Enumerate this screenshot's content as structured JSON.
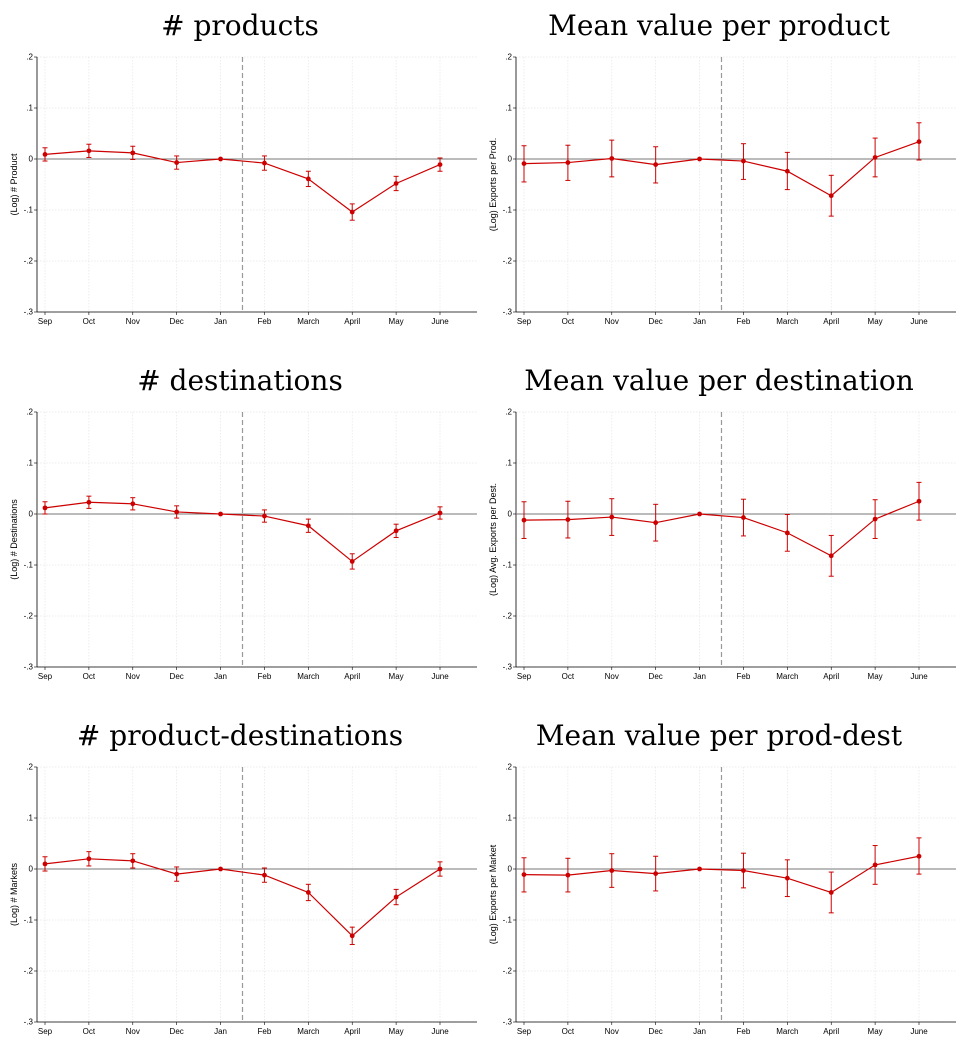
{
  "chart_data": [
    {
      "type": "line",
      "title": "# products",
      "ylabel": "(Log) # Product",
      "categories": [
        "Sep",
        "Oct",
        "Nov",
        "Dec",
        "Jan",
        "Feb",
        "March",
        "April",
        "May",
        "June"
      ],
      "y_ticks": [
        ".2",
        ".1",
        "0",
        "-.1",
        "-.2",
        "-.3"
      ],
      "ylim": [
        -0.3,
        0.2
      ],
      "grid": true,
      "reference_line_after": "Jan",
      "values": [
        0.009,
        0.016,
        0.012,
        -0.007,
        0.0,
        -0.008,
        -0.039,
        -0.104,
        -0.048,
        -0.011
      ],
      "ci_low": [
        -0.004,
        0.003,
        -0.001,
        -0.02,
        0.0,
        -0.022,
        -0.054,
        -0.12,
        -0.062,
        -0.024
      ],
      "ci_high": [
        0.022,
        0.029,
        0.025,
        0.006,
        0.0,
        0.006,
        -0.024,
        -0.088,
        -0.034,
        0.002
      ],
      "color": "#cc0000"
    },
    {
      "type": "line",
      "title": "Mean value per product",
      "ylabel": "(Log) Exports per Prod.",
      "categories": [
        "Sep",
        "Oct",
        "Nov",
        "Dec",
        "Jan",
        "Feb",
        "March",
        "April",
        "May",
        "June"
      ],
      "y_ticks": [
        ".2",
        ".1",
        "0",
        "-.1",
        "-.2",
        "-.3"
      ],
      "ylim": [
        -0.3,
        0.2
      ],
      "grid": true,
      "reference_line_after": "Jan",
      "values": [
        -0.009,
        -0.007,
        0.001,
        -0.011,
        0.0,
        -0.004,
        -0.024,
        -0.072,
        0.003,
        0.034
      ],
      "ci_low": [
        -0.045,
        -0.042,
        -0.035,
        -0.047,
        0.0,
        -0.04,
        -0.06,
        -0.112,
        -0.035,
        -0.002
      ],
      "ci_high": [
        0.026,
        0.027,
        0.037,
        0.024,
        0.0,
        0.03,
        0.013,
        -0.032,
        0.041,
        0.071
      ],
      "color": "#cc0000"
    },
    {
      "type": "line",
      "title": "# destinations",
      "ylabel": "(Log) # Destinations",
      "categories": [
        "Sep",
        "Oct",
        "Nov",
        "Dec",
        "Jan",
        "Feb",
        "March",
        "April",
        "May",
        "June"
      ],
      "y_ticks": [
        ".2",
        ".1",
        "0",
        "-.1",
        "-.2",
        "-.3"
      ],
      "ylim": [
        -0.3,
        0.2
      ],
      "grid": true,
      "reference_line_after": "Jan",
      "values": [
        0.012,
        0.023,
        0.02,
        0.004,
        0.0,
        -0.004,
        -0.023,
        -0.093,
        -0.033,
        0.002
      ],
      "ci_low": [
        0.0,
        0.011,
        0.008,
        -0.008,
        0.0,
        -0.016,
        -0.036,
        -0.108,
        -0.046,
        -0.01
      ],
      "ci_high": [
        0.024,
        0.035,
        0.032,
        0.016,
        0.0,
        0.008,
        -0.01,
        -0.078,
        -0.02,
        0.014
      ],
      "color": "#cc0000"
    },
    {
      "type": "line",
      "title": "Mean value per destination",
      "ylabel": "(Log) Avg. Exports per Dest.",
      "categories": [
        "Sep",
        "Oct",
        "Nov",
        "Dec",
        "Jan",
        "Feb",
        "March",
        "April",
        "May",
        "June"
      ],
      "y_ticks": [
        ".2",
        ".1",
        "0",
        "-.1",
        "-.2",
        "-.3"
      ],
      "ylim": [
        -0.3,
        0.2
      ],
      "grid": true,
      "reference_line_after": "Jan",
      "values": [
        -0.012,
        -0.011,
        -0.006,
        -0.017,
        0.0,
        -0.007,
        -0.037,
        -0.082,
        -0.01,
        0.025
      ],
      "ci_low": [
        -0.048,
        -0.047,
        -0.042,
        -0.053,
        0.0,
        -0.043,
        -0.073,
        -0.122,
        -0.048,
        -0.012
      ],
      "ci_high": [
        0.024,
        0.025,
        0.03,
        0.019,
        0.0,
        0.029,
        -0.001,
        -0.042,
        0.028,
        0.062
      ],
      "color": "#cc0000"
    },
    {
      "type": "line",
      "title": "# product-destinations",
      "ylabel": "(Log) # Markets",
      "categories": [
        "Sep",
        "Oct",
        "Nov",
        "Dec",
        "Jan",
        "Feb",
        "March",
        "April",
        "May",
        "June"
      ],
      "y_ticks": [
        ".2",
        ".1",
        "0",
        "-.1",
        "-.2",
        "-.3"
      ],
      "ylim": [
        -0.3,
        0.2
      ],
      "grid": true,
      "reference_line_after": "Jan",
      "values": [
        0.01,
        0.02,
        0.016,
        -0.01,
        0.0,
        -0.012,
        -0.046,
        -0.131,
        -0.055,
        0.0
      ],
      "ci_low": [
        -0.004,
        0.006,
        0.002,
        -0.024,
        0.0,
        -0.026,
        -0.062,
        -0.148,
        -0.07,
        -0.014
      ],
      "ci_high": [
        0.024,
        0.034,
        0.03,
        0.004,
        0.0,
        0.002,
        -0.03,
        -0.114,
        -0.04,
        0.014
      ],
      "color": "#cc0000"
    },
    {
      "type": "line",
      "title": "Mean value per prod-dest",
      "ylabel": "(Log) Exports per Market",
      "categories": [
        "Sep",
        "Oct",
        "Nov",
        "Dec",
        "Jan",
        "Feb",
        "March",
        "April",
        "May",
        "June"
      ],
      "y_ticks": [
        ".2",
        ".1",
        "0",
        "-.1",
        "-.2",
        "-.3"
      ],
      "ylim": [
        -0.3,
        0.2
      ],
      "grid": true,
      "reference_line_after": "Jan",
      "values": [
        -0.011,
        -0.012,
        -0.003,
        -0.009,
        0.0,
        -0.003,
        -0.018,
        -0.046,
        0.008,
        0.025
      ],
      "ci_low": [
        -0.045,
        -0.045,
        -0.036,
        -0.043,
        0.0,
        -0.037,
        -0.054,
        -0.086,
        -0.03,
        -0.01
      ],
      "ci_high": [
        0.022,
        0.021,
        0.03,
        0.025,
        0.0,
        0.031,
        0.018,
        -0.006,
        0.046,
        0.061
      ],
      "color": "#cc0000"
    }
  ]
}
